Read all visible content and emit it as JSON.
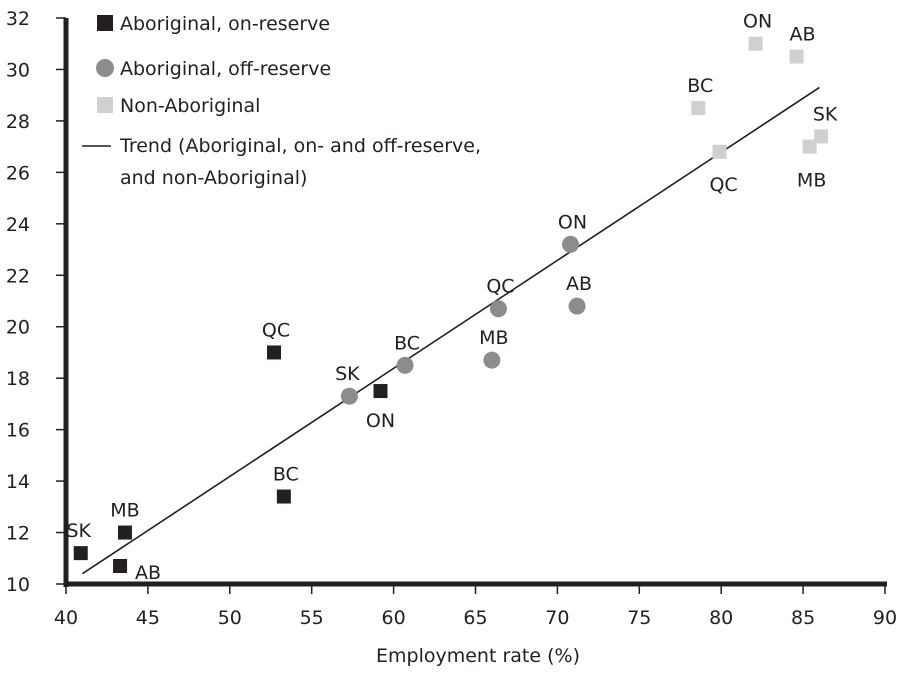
{
  "chart_data": {
    "type": "scatter",
    "xlabel": "Employment rate (%)",
    "ylabel": "",
    "xlim": [
      40,
      90
    ],
    "ylim": [
      10,
      32
    ],
    "xticks": [
      40,
      45,
      50,
      55,
      60,
      65,
      70,
      75,
      80,
      85,
      90
    ],
    "yticks": [
      10,
      12,
      14,
      16,
      18,
      20,
      22,
      24,
      26,
      28,
      30,
      32
    ],
    "grid": false,
    "legend_position": "top-left",
    "series": [
      {
        "name": "Aboriginal, on-reserve",
        "marker": "square",
        "color": "#231f20",
        "points": [
          {
            "label": "SK",
            "x": 40.9,
            "y": 11.2
          },
          {
            "label": "MB",
            "x": 43.6,
            "y": 12.0
          },
          {
            "label": "AB",
            "x": 43.3,
            "y": 10.7
          },
          {
            "label": "BC",
            "x": 53.3,
            "y": 13.4
          },
          {
            "label": "QC",
            "x": 52.7,
            "y": 19.0
          },
          {
            "label": "ON",
            "x": 59.2,
            "y": 17.5
          }
        ]
      },
      {
        "name": "Aboriginal, off-reserve",
        "marker": "circle",
        "color": "#8c8c8c",
        "points": [
          {
            "label": "SK",
            "x": 57.3,
            "y": 17.3
          },
          {
            "label": "BC",
            "x": 60.7,
            "y": 18.5
          },
          {
            "label": "MB",
            "x": 66.0,
            "y": 18.7
          },
          {
            "label": "QC",
            "x": 66.4,
            "y": 20.7
          },
          {
            "label": "AB",
            "x": 71.2,
            "y": 20.8
          },
          {
            "label": "ON",
            "x": 70.8,
            "y": 23.2
          }
        ]
      },
      {
        "name": "Non-Aboriginal",
        "marker": "square",
        "color": "#d0d0d0",
        "points": [
          {
            "label": "BC",
            "x": 78.6,
            "y": 28.5
          },
          {
            "label": "QC",
            "x": 79.9,
            "y": 26.8
          },
          {
            "label": "ON",
            "x": 82.1,
            "y": 31.0
          },
          {
            "label": "AB",
            "x": 84.6,
            "y": 30.5
          },
          {
            "label": "MB",
            "x": 85.4,
            "y": 27.0
          },
          {
            "label": "SK",
            "x": 86.1,
            "y": 27.4
          }
        ]
      }
    ],
    "trend": {
      "name": "Trend (Aboriginal, on- and off-reserve, and non-Aboriginal)",
      "name_lines": [
        "Trend (Aboriginal, on- and off-reserve,",
        "and non-Aboriginal)"
      ],
      "x1": 41.0,
      "y1": 10.4,
      "x2": 86.0,
      "y2": 29.3
    }
  }
}
